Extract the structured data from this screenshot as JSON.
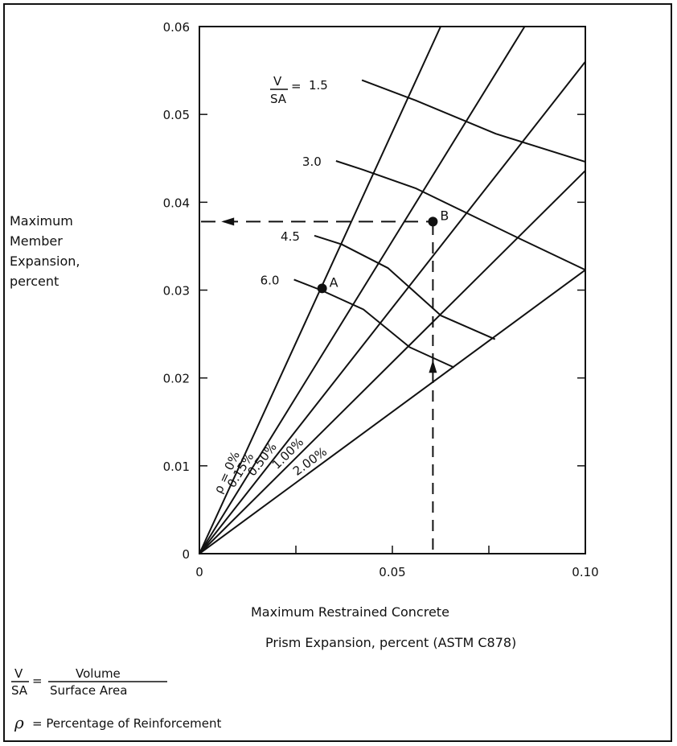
{
  "chart_data": {
    "type": "line",
    "xlabel_line1": "Maximum  Restrained  Concrete",
    "xlabel_line2": "Prism  Expansion,  percent  (ASTM C878)",
    "ylabel_lines": [
      "Maximum",
      "Member",
      "Expansion,",
      "percent"
    ],
    "xlim": [
      0,
      0.1
    ],
    "ylim": [
      0,
      0.06
    ],
    "x_ticks": [
      {
        "value": 0,
        "label": "0"
      },
      {
        "value": 0.05,
        "label": "0.05"
      },
      {
        "value": 0.1,
        "label": "0.10"
      }
    ],
    "y_ticks": [
      {
        "value": 0,
        "label": "0"
      },
      {
        "value": 0.01,
        "label": "0.01"
      },
      {
        "value": 0.02,
        "label": "0.02"
      },
      {
        "value": 0.03,
        "label": "0.03"
      },
      {
        "value": 0.04,
        "label": "0.04"
      },
      {
        "value": 0.05,
        "label": "0.05"
      },
      {
        "value": 0.06,
        "label": "0.06"
      }
    ],
    "series": [
      {
        "name": "ρ = 0%",
        "slope": 0.96
      },
      {
        "name": "0.15%",
        "slope": 0.712
      },
      {
        "name": "0.50%",
        "slope": 0.56
      },
      {
        "name": "1.00%",
        "slope": 0.436
      },
      {
        "name": "2.00%",
        "slope": 0.323
      }
    ],
    "vsa_curves": [
      {
        "label": "1.5",
        "points": [
          [
            0.0421,
            0.0539
          ],
          [
            0.056,
            0.0516
          ],
          [
            0.0768,
            0.0478
          ],
          [
            0.1,
            0.0446
          ]
        ]
      },
      {
        "label": "3.0",
        "points": [
          [
            0.0354,
            0.0447
          ],
          [
            0.0424,
            0.0437
          ],
          [
            0.056,
            0.0416
          ],
          [
            0.0828,
            0.0359
          ],
          [
            0.1,
            0.0323
          ]
        ]
      },
      {
        "label": "4.5",
        "points": [
          [
            0.0298,
            0.0362
          ],
          [
            0.0369,
            0.0352
          ],
          [
            0.0489,
            0.0325
          ],
          [
            0.0626,
            0.0271
          ],
          [
            0.0766,
            0.0244
          ]
        ]
      },
      {
        "label": "6.0",
        "points": [
          [
            0.0245,
            0.0312
          ],
          [
            0.0315,
            0.03
          ],
          [
            0.0425,
            0.0278
          ],
          [
            0.0545,
            0.0235
          ],
          [
            0.066,
            0.0212
          ]
        ]
      }
    ],
    "points": [
      {
        "label": "A",
        "x": 0.0318,
        "y": 0.0302
      },
      {
        "label": "B",
        "x": 0.0605,
        "y": 0.0378
      }
    ],
    "example_path": {
      "x": 0.0605,
      "y": 0.0378
    }
  },
  "legend": {
    "vsa_label_v": "V",
    "vsa_label_sa": "SA",
    "vsa_equals": "=",
    "vsa_first_value": "1.5",
    "def_vsa_v": "V",
    "def_vsa_sa": "SA",
    "def_eq": "=",
    "def_numer": "Volume",
    "def_denom": "Surface Area",
    "def_rho_symbol": "ρ",
    "def_rho_text": "=  Percentage  of  Reinforcement"
  }
}
